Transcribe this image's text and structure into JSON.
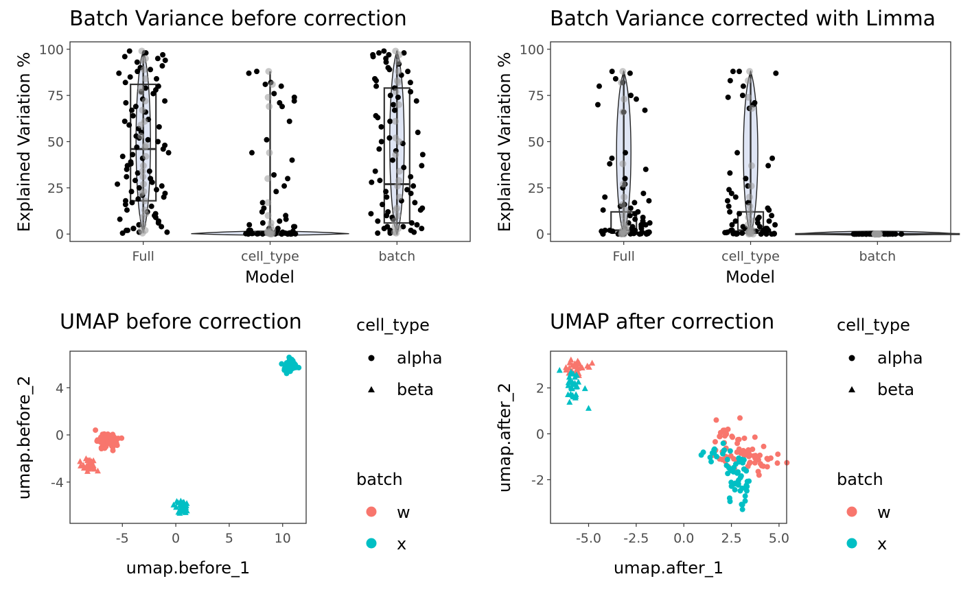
{
  "colors": {
    "batch_w": "#F8766D",
    "batch_x": "#00BFC4",
    "violin_fill": "#B7C6E6",
    "point": "#000000",
    "box_stroke": "#333333"
  },
  "chart_data": [
    {
      "id": "variance-before",
      "type": "box-violin-jitter",
      "title": "Batch Variance before correction",
      "xlabel": "Model",
      "ylabel": "Explained Variation %",
      "categories": [
        "Full",
        "cell_type",
        "batch"
      ],
      "yticks": [
        0,
        25,
        50,
        75,
        100
      ],
      "ylim": [
        -4,
        104
      ],
      "boxes": [
        {
          "category": "Full",
          "q1": 18,
          "median": 46,
          "q3": 81,
          "whisker_low": 1,
          "whisker_high": 99
        },
        {
          "category": "cell_type",
          "q1": 0.1,
          "median": 0.5,
          "q3": 1.5,
          "whisker_low": 0,
          "whisker_high": 88
        },
        {
          "category": "batch",
          "q1": 6,
          "median": 27,
          "q3": 79,
          "whisker_low": 0,
          "whisker_high": 99
        }
      ],
      "points": {
        "Full": [
          99,
          98,
          97,
          95,
          93,
          91,
          89,
          88,
          87,
          84,
          82,
          80,
          79,
          78,
          76,
          72,
          71,
          69,
          67,
          64,
          62,
          59,
          57,
          55,
          53,
          51,
          50,
          48,
          46,
          44,
          42,
          41,
          39,
          37,
          35,
          33,
          31,
          30,
          28,
          27,
          25,
          24,
          23,
          21,
          20,
          18,
          17,
          15,
          13,
          12,
          10,
          9,
          8,
          7,
          5,
          4,
          3,
          2,
          1,
          1,
          0.5,
          98,
          96,
          94,
          90,
          85,
          77,
          73,
          66,
          61,
          58,
          52,
          47,
          43,
          38,
          34,
          29,
          26,
          22,
          19,
          16,
          11,
          6,
          3,
          2
        ],
        "cell_type": [
          88,
          87,
          82,
          81,
          80,
          76,
          74,
          72,
          71,
          69,
          61,
          51,
          44,
          40,
          32,
          30,
          26,
          23,
          17,
          14,
          12,
          10,
          8,
          7,
          6,
          5,
          4,
          4,
          3,
          3,
          2,
          2,
          2,
          1.5,
          1.5,
          1,
          1,
          1,
          0.8,
          0.8,
          0.6,
          0.5,
          0.5,
          0.4,
          0.3,
          0.3,
          0.2,
          0.2,
          0.1,
          0.1,
          0.1,
          0.05,
          0.05,
          0,
          0,
          0,
          0
        ],
        "batch": [
          99,
          98,
          98,
          97,
          96,
          95,
          93,
          92,
          90,
          88,
          86,
          84,
          82,
          80,
          79,
          77,
          75,
          72,
          70,
          67,
          64,
          61,
          58,
          55,
          52,
          49,
          46,
          43,
          40,
          37,
          34,
          31,
          28,
          26,
          24,
          22,
          20,
          18,
          16,
          14,
          12,
          11,
          10,
          9,
          8,
          7,
          6,
          5,
          4,
          4,
          3,
          3,
          2,
          2,
          1,
          1,
          0.5,
          0.5,
          97,
          89,
          83,
          74,
          63,
          50,
          45,
          36,
          29,
          23,
          17,
          13
        ]
      }
    },
    {
      "id": "variance-after",
      "type": "box-violin-jitter",
      "title": "Batch Variance corrected with Limma",
      "xlabel": "Model",
      "ylabel": "Explained Variation %",
      "categories": [
        "Full",
        "cell_type",
        "batch"
      ],
      "yticks": [
        0,
        25,
        50,
        75,
        100
      ],
      "ylim": [
        -4,
        104
      ],
      "boxes": [
        {
          "category": "Full",
          "q1": 0.5,
          "median": 2,
          "q3": 12,
          "whisker_low": 0,
          "whisker_high": 88
        },
        {
          "category": "cell_type",
          "q1": 0.5,
          "median": 2,
          "q3": 12,
          "whisker_low": 0,
          "whisker_high": 88
        },
        {
          "category": "batch",
          "q1": 0,
          "median": 0,
          "q3": 0,
          "whisker_low": 0,
          "whisker_high": 0
        }
      ],
      "points": {
        "Full": [
          88,
          87,
          84,
          82,
          80,
          75,
          73,
          70,
          67,
          66,
          44,
          41,
          38,
          35,
          30,
          27,
          25,
          22,
          20,
          18,
          17,
          16,
          15,
          14,
          13,
          12,
          11,
          10,
          9,
          8,
          7,
          6,
          6,
          5,
          5,
          4,
          4,
          3,
          3,
          3,
          2,
          2,
          2,
          2,
          1.5,
          1.5,
          1,
          1,
          1,
          1,
          0.8,
          0.8,
          0.5,
          0.5,
          0.3,
          0.3,
          0.2,
          0.1,
          0.1,
          0,
          0,
          0,
          0,
          0
        ],
        "cell_type": [
          88,
          88,
          87,
          83,
          80,
          75,
          74,
          71,
          70,
          68,
          44,
          41,
          37,
          33,
          30,
          26,
          24,
          22,
          20,
          18,
          17,
          15,
          14,
          13,
          12,
          11,
          10,
          9,
          8,
          7,
          7,
          6,
          5,
          5,
          4,
          4,
          3,
          3,
          3,
          2,
          2,
          2,
          2,
          1.5,
          1.5,
          1,
          1,
          1,
          0.8,
          0.8,
          0.5,
          0.5,
          0.3,
          0.3,
          0.2,
          0.1,
          0.1,
          0,
          0,
          0,
          0
        ],
        "batch": [
          0,
          0,
          0,
          0,
          0,
          0,
          0,
          0,
          0,
          0,
          0,
          0,
          0,
          0,
          0,
          0,
          0,
          0,
          0,
          0,
          0,
          0,
          0,
          0,
          0,
          0,
          0,
          0,
          0,
          0,
          0,
          0,
          0,
          0,
          0,
          0,
          0,
          0,
          0,
          0
        ]
      }
    },
    {
      "id": "umap-before",
      "type": "scatter",
      "title": "UMAP before correction",
      "xlabel": "umap.before_1",
      "ylabel": "umap.before_2",
      "xticks": [
        -5,
        0,
        5,
        10
      ],
      "yticks": [
        4,
        0,
        -4
      ],
      "ytick_labels": [
        "4",
        "0",
        "-4"
      ],
      "xlim": [
        -9.9,
        12.2
      ],
      "ylim": [
        -7.5,
        7.1
      ],
      "clusters": [
        {
          "batch": "w",
          "cell_type": "alpha",
          "cx": -6.3,
          "cy": -0.6,
          "sx": 0.55,
          "sy": 0.35,
          "n": 55
        },
        {
          "batch": "w",
          "cell_type": "beta",
          "cx": -8.2,
          "cy": -2.6,
          "sx": 0.35,
          "sy": 0.22,
          "n": 30
        },
        {
          "batch": "x",
          "cell_type": "alpha",
          "cx": 10.6,
          "cy": 5.8,
          "sx": 0.35,
          "sy": 0.3,
          "n": 55
        },
        {
          "batch": "x",
          "cell_type": "beta",
          "cx": 0.6,
          "cy": -6.2,
          "sx": 0.22,
          "sy": 0.3,
          "n": 30
        }
      ]
    },
    {
      "id": "umap-after",
      "type": "scatter",
      "title": "UMAP after correction",
      "xlabel": "umap.after_1",
      "ylabel": "umap.after_2",
      "xticks": [
        -5.0,
        -2.5,
        0.0,
        2.5,
        5.0
      ],
      "xtick_labels": [
        "-5.0",
        "-2.5",
        "0.0",
        "2.5",
        "5.0"
      ],
      "yticks": [
        2,
        0,
        -2
      ],
      "ytick_labels": [
        "2",
        "0",
        "-2"
      ],
      "xlim": [
        -7.0,
        5.4
      ],
      "ylim": [
        -3.9,
        3.6
      ],
      "clusters": [
        {
          "batch": "w",
          "cell_type": "beta",
          "cx": -5.6,
          "cy": 2.9,
          "sx": 0.38,
          "sy": 0.22,
          "n": 28
        },
        {
          "batch": "x",
          "cell_type": "beta",
          "cx": -5.8,
          "cy": 1.9,
          "sx": 0.28,
          "sy": 0.45,
          "n": 32
        },
        {
          "batch": "w",
          "cell_type": "alpha",
          "cx": 3.3,
          "cy": -1.0,
          "sx": 0.85,
          "sy": 0.35,
          "n": 55
        },
        {
          "batch": "w",
          "cell_type": "alpha",
          "cx": 2.3,
          "cy": 0.0,
          "sx": 0.3,
          "sy": 0.4,
          "n": 18
        },
        {
          "batch": "x",
          "cell_type": "alpha",
          "cx": 2.8,
          "cy": -2.2,
          "sx": 0.35,
          "sy": 0.55,
          "n": 45
        },
        {
          "batch": "x",
          "cell_type": "alpha",
          "cx": 1.8,
          "cy": -0.8,
          "sx": 0.45,
          "sy": 0.2,
          "n": 15
        }
      ]
    }
  ],
  "legends": [
    {
      "shape_title": "cell_type",
      "shape_items": [
        {
          "label": "alpha",
          "shape": "circle"
        },
        {
          "label": "beta",
          "shape": "triangle"
        }
      ],
      "color_title": "batch",
      "color_items": [
        {
          "label": "w",
          "color": "#F8766D"
        },
        {
          "label": "x",
          "color": "#00BFC4"
        }
      ]
    },
    {
      "shape_title": "cell_type",
      "shape_items": [
        {
          "label": "alpha",
          "shape": "circle"
        },
        {
          "label": "beta",
          "shape": "triangle"
        }
      ],
      "color_title": "batch",
      "color_items": [
        {
          "label": "w",
          "color": "#F8766D"
        },
        {
          "label": "x",
          "color": "#00BFC4"
        }
      ]
    }
  ]
}
